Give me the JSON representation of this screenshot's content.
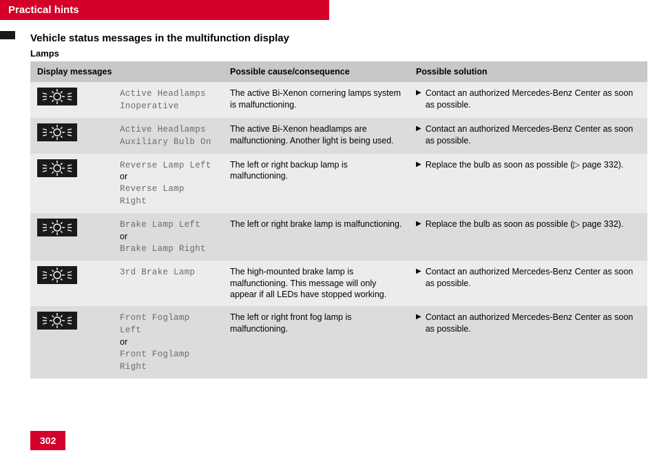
{
  "colors": {
    "accent": "#d4002a",
    "header_row": "#c8c8c8",
    "row_odd": "#ececec",
    "row_even": "#dcdcdc",
    "icon_bg": "#1a1a1a",
    "mono_text": "#6a6a6a"
  },
  "header": {
    "title": "Practical hints"
  },
  "subheading": "Vehicle status messages in the multifunction display",
  "section": "Lamps",
  "columns": {
    "c1": "Display messages",
    "c2": "Possible cause/consequence",
    "c3": "Possible solution"
  },
  "page_number": "302",
  "marker": "▶",
  "ref_marker": "▷",
  "rows": [
    {
      "msg1": "Active Headlamps",
      "msg2": "Inoperative",
      "or": "",
      "msg3": "",
      "cause": "The active Bi-Xenon cornering lamps system is malfunctioning.",
      "solution": "Contact an authorized Mercedes-Benz Center as soon as possible."
    },
    {
      "msg1": "Active Headlamps",
      "msg2": "Auxiliary Bulb On",
      "or": "",
      "msg3": "",
      "cause": "The active Bi-Xenon headlamps are malfunctioning. Another light is being used.",
      "solution": "Contact an authorized Mercedes-Benz Center as soon as possible."
    },
    {
      "msg1": "Reverse Lamp Left",
      "msg2": "",
      "or": "or",
      "msg3": "Reverse Lamp Right",
      "cause": "The left or right backup lamp is malfunctioning.",
      "solution": "Replace the bulb as soon as possible (▷ page 332)."
    },
    {
      "msg1": "Brake Lamp Left",
      "msg2": "",
      "or": "or",
      "msg3": "Brake Lamp Right",
      "cause": "The left or right brake lamp is malfunctioning.",
      "solution": "Replace the bulb as soon as possible (▷ page 332)."
    },
    {
      "msg1": "3rd Brake Lamp",
      "msg2": "",
      "or": "",
      "msg3": "",
      "cause": "The high-mounted brake lamp is malfunctioning. This message will only appear if all LEDs have stopped working.",
      "solution": "Contact an authorized Mercedes-Benz Center as soon as possible."
    },
    {
      "msg1": "Front Foglamp Left",
      "msg2": "",
      "or": "or",
      "msg3": "Front Foglamp Right",
      "cause": "The left or right front fog lamp is malfunctioning.",
      "solution": "Contact an authorized Mercedes-Benz Center as soon as possible."
    }
  ]
}
